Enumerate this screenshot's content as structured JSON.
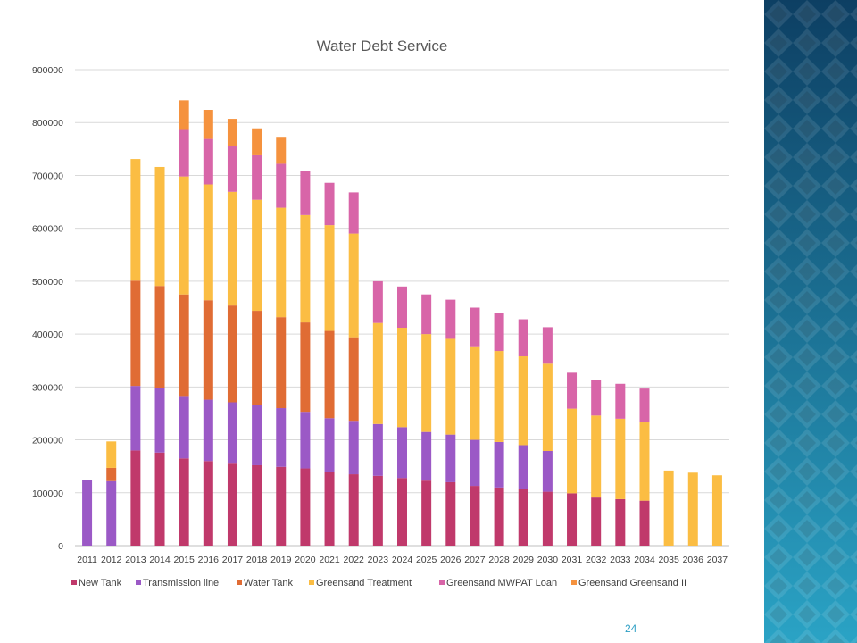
{
  "page_number": "24",
  "colors": {
    "panel_dark": "#0d3f63",
    "panel_light": "#2aa3c5",
    "page_number": "#2e9fc4"
  },
  "chart_data": {
    "type": "bar",
    "stacked": true,
    "title": "Water Debt Service",
    "xlabel": "",
    "ylabel": "",
    "ylim": [
      0,
      900000
    ],
    "yticks": [
      0,
      100000,
      200000,
      300000,
      400000,
      500000,
      600000,
      700000,
      800000,
      900000
    ],
    "grid": true,
    "legend_position": "bottom",
    "categories": [
      "2011",
      "2012",
      "2013",
      "2014",
      "2015",
      "2016",
      "2017",
      "2018",
      "2019",
      "2020",
      "2021",
      "2022",
      "2023",
      "2024",
      "2025",
      "2026",
      "2027",
      "2028",
      "2029",
      "2030",
      "2031",
      "2032",
      "2033",
      "2034",
      "2035",
      "2036",
      "2037"
    ],
    "series": [
      {
        "name": "New Tank",
        "color": "#c0396b",
        "values": [
          0,
          0,
          180000,
          176000,
          165000,
          160000,
          155000,
          152000,
          149000,
          146000,
          139000,
          135000,
          132000,
          128000,
          123000,
          120000,
          113000,
          110000,
          107000,
          102000,
          99000,
          91000,
          88000,
          85000,
          0,
          0,
          0
        ]
      },
      {
        "name": "Transmission line",
        "color": "#9b59c6",
        "values": [
          124000,
          122000,
          122000,
          122000,
          118000,
          116000,
          116000,
          114000,
          111000,
          107000,
          102000,
          101000,
          98000,
          96000,
          92000,
          90000,
          87000,
          86000,
          83000,
          77000,
          0,
          0,
          0,
          0,
          0,
          0,
          0
        ]
      },
      {
        "name": "Water Tank",
        "color": "#e06c34",
        "values": [
          0,
          25000,
          199000,
          193000,
          192000,
          188000,
          183000,
          178000,
          172000,
          169000,
          165000,
          158000,
          0,
          0,
          0,
          0,
          0,
          0,
          0,
          0,
          0,
          0,
          0,
          0,
          0,
          0,
          0
        ]
      },
      {
        "name": "Greensand  Treatment",
        "color": "#fbbd43",
        "values": [
          0,
          50000,
          230000,
          225000,
          223000,
          219000,
          215000,
          210000,
          207000,
          203000,
          200000,
          196000,
          191000,
          188000,
          185000,
          181000,
          177000,
          172000,
          168000,
          165000,
          160000,
          155000,
          152000,
          148000,
          142000,
          138000,
          133000
        ]
      },
      {
        "name": "Greensand  MWPAT Loan",
        "color": "#d865a8",
        "values": [
          0,
          0,
          0,
          0,
          88000,
          86000,
          86000,
          84000,
          83000,
          83000,
          80000,
          78000,
          79000,
          78000,
          75000,
          74000,
          73000,
          71000,
          70000,
          69000,
          68000,
          68000,
          66000,
          64000,
          0,
          0,
          0
        ]
      },
      {
        "name": "Greensand  Greensand II",
        "color": "#f5923e",
        "values": [
          0,
          0,
          0,
          0,
          56000,
          55000,
          52000,
          51000,
          51000,
          0,
          0,
          0,
          0,
          0,
          0,
          0,
          0,
          0,
          0,
          0,
          0,
          0,
          0,
          0,
          0,
          0,
          0
        ]
      }
    ]
  }
}
